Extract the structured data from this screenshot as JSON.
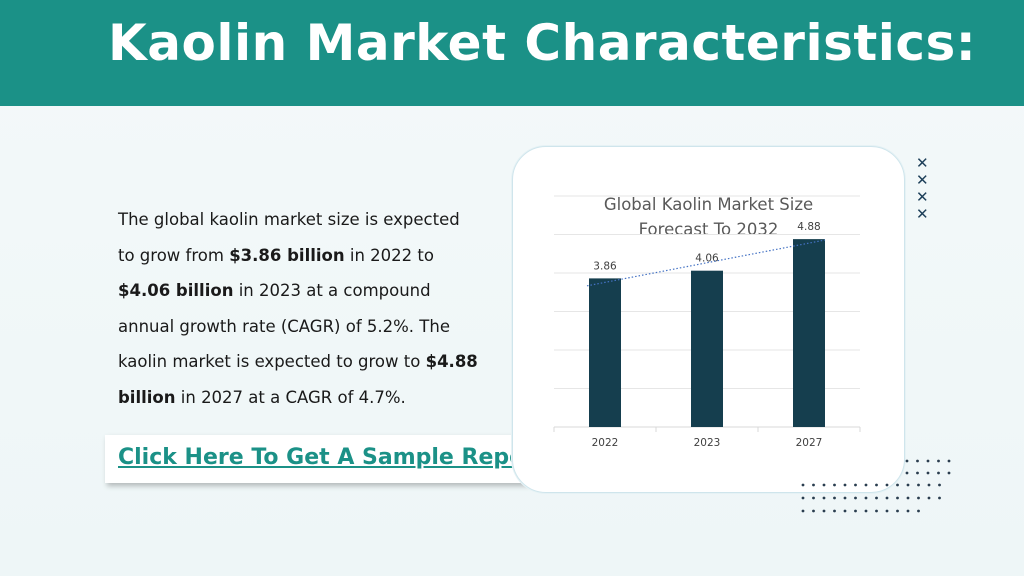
{
  "header": {
    "title": "Kaolin Market Characteristics:"
  },
  "text": {
    "p1": "The global kaolin market size is expected to grow from ",
    "b1": "$3.86 billion",
    "p2": " in 2022 to ",
    "b2": "$4.06 billion",
    "p3": " in 2023 at a compound annual growth rate (CAGR) of 5.2%. The kaolin market is expected to grow to ",
    "b3": "$4.88 billion",
    "p4": " in 2027 at a CAGR of 4.7%."
  },
  "cta": {
    "label": "Click Here To Get A Sample Report"
  },
  "decor": {
    "x_icon": "close-x-icon",
    "x_glyph": "✕"
  },
  "colors": {
    "header": "#1b9187",
    "bar": "#153e4e",
    "trend": "#4472c4",
    "link": "#1b9187"
  },
  "chart_data": {
    "type": "bar",
    "title": "Global Kaolin Market Size Forecast To 2032",
    "title_line1": "Global Kaolin Market Size",
    "title_line2": "Forecast To 2032",
    "categories": [
      "2022",
      "2023",
      "2027"
    ],
    "values": [
      3.86,
      4.06,
      4.88
    ],
    "data_labels": [
      "3.86",
      "4.06",
      "4.88"
    ],
    "trendline": true,
    "ylim": [
      0,
      6
    ],
    "grid": true,
    "xlabel": "",
    "ylabel": ""
  }
}
